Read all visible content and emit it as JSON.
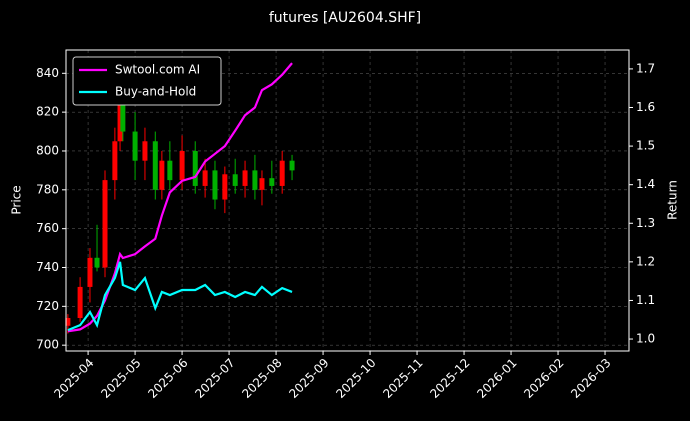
{
  "chart_data": {
    "type": "candlestick",
    "title": "futures [AU2604.SHF]",
    "ylabel": "Price",
    "y2label": "Return",
    "x": [
      -0.43,
      -0.17,
      0.04,
      0.19,
      0.36,
      0.57,
      0.68,
      0.74,
      1.0,
      1.21,
      1.43,
      1.57,
      1.74,
      2.0,
      2.28,
      2.49,
      2.7,
      2.91,
      3.13,
      3.34,
      3.55,
      3.7,
      3.91,
      4.13,
      4.34
    ],
    "open": [
      710,
      714,
      730,
      745,
      740,
      785,
      805,
      830,
      810,
      795,
      805,
      780,
      795,
      785,
      800,
      782,
      790,
      775,
      788,
      782,
      790,
      780,
      786,
      782,
      795
    ],
    "high": [
      716,
      735,
      750,
      762,
      790,
      812,
      842,
      835,
      820,
      812,
      810,
      800,
      805,
      808,
      805,
      796,
      795,
      792,
      796,
      795,
      798,
      790,
      795,
      800,
      798
    ],
    "low": [
      706,
      712,
      722,
      738,
      735,
      775,
      800,
      805,
      785,
      785,
      775,
      775,
      780,
      780,
      778,
      776,
      770,
      768,
      778,
      776,
      775,
      772,
      778,
      778,
      785
    ],
    "close": [
      714,
      730,
      745,
      740,
      785,
      805,
      830,
      810,
      795,
      805,
      780,
      795,
      785,
      800,
      782,
      790,
      775,
      788,
      782,
      790,
      780,
      786,
      782,
      795,
      790
    ],
    "up_color": "#ff0000",
    "down_color": "#00b000",
    "series": [
      {
        "name": "Swtool.com AI",
        "color": "#ff00ff",
        "axis": "y2",
        "values": [
          1.02,
          1.025,
          1.04,
          1.06,
          1.1,
          1.17,
          1.22,
          1.21,
          1.22,
          1.24,
          1.26,
          1.32,
          1.38,
          1.41,
          1.42,
          1.46,
          1.48,
          1.5,
          1.54,
          1.58,
          1.6,
          1.645,
          1.66,
          1.685,
          1.715
        ]
      },
      {
        "name": "Buy-and-Hold",
        "color": "#00ffff",
        "axis": "y2",
        "values": [
          1.023,
          1.036,
          1.07,
          1.036,
          1.114,
          1.158,
          1.2,
          1.14,
          1.127,
          1.158,
          1.08,
          1.122,
          1.114,
          1.127,
          1.127,
          1.14,
          1.114,
          1.122,
          1.109,
          1.122,
          1.114,
          1.135,
          1.114,
          1.132,
          1.122
        ]
      }
    ],
    "xlim": [
      -0.47,
      11.51
    ],
    "xticks": [
      {
        "value": 0,
        "label": "2025-04"
      },
      {
        "value": 1,
        "label": "2025-05"
      },
      {
        "value": 2,
        "label": "2025-06"
      },
      {
        "value": 3,
        "label": "2025-07"
      },
      {
        "value": 4,
        "label": "2025-08"
      },
      {
        "value": 5,
        "label": "2025-09"
      },
      {
        "value": 6,
        "label": "2025-10"
      },
      {
        "value": 7,
        "label": "2025-11"
      },
      {
        "value": 8,
        "label": "2025-12"
      },
      {
        "value": 9,
        "label": "2026-01"
      },
      {
        "value": 10,
        "label": "2026-02"
      },
      {
        "value": 11,
        "label": "2026-03"
      }
    ],
    "ylim": [
      697,
      852
    ],
    "yticks": [
      700,
      720,
      740,
      760,
      780,
      800,
      820,
      840
    ],
    "y2lim": [
      0.969,
      1.749
    ],
    "y2ticks": [
      1.0,
      1.1,
      1.2,
      1.3,
      1.4,
      1.5,
      1.6,
      1.7
    ],
    "grid": true,
    "legend": "upper left"
  }
}
